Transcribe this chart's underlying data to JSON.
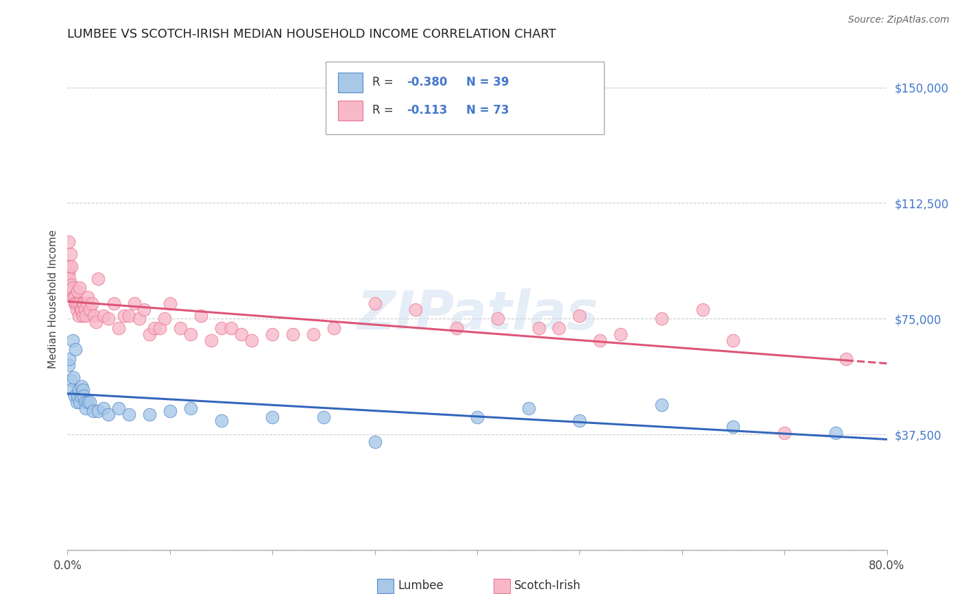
{
  "title": "LUMBEE VS SCOTCH-IRISH MEDIAN HOUSEHOLD INCOME CORRELATION CHART",
  "source": "Source: ZipAtlas.com",
  "ylabel": "Median Household Income",
  "yticks": [
    0,
    37500,
    75000,
    112500,
    150000
  ],
  "xlim": [
    0.0,
    0.8
  ],
  "ylim": [
    0,
    162500
  ],
  "watermark": "ZIPatlas",
  "lumbee_R": "-0.380",
  "lumbee_N": "39",
  "scotch_R": "-0.113",
  "scotch_N": "73",
  "lumbee_color": "#a8c8e8",
  "lumbee_edge_color": "#5588cc",
  "lumbee_line_color": "#3366bb",
  "scotch_color": "#f8b8c8",
  "scotch_edge_color": "#e87090",
  "scotch_line_color": "#dd5577",
  "lumbee_x": [
    0.001,
    0.002,
    0.003,
    0.004,
    0.005,
    0.006,
    0.007,
    0.008,
    0.009,
    0.01,
    0.011,
    0.012,
    0.013,
    0.014,
    0.015,
    0.016,
    0.017,
    0.018,
    0.02,
    0.022,
    0.025,
    0.03,
    0.035,
    0.04,
    0.05,
    0.06,
    0.08,
    0.1,
    0.12,
    0.15,
    0.2,
    0.25,
    0.3,
    0.4,
    0.45,
    0.5,
    0.58,
    0.65,
    0.75
  ],
  "lumbee_y": [
    60000,
    62000,
    55000,
    52000,
    68000,
    56000,
    50000,
    65000,
    48000,
    50000,
    52000,
    48000,
    50000,
    53000,
    52000,
    50000,
    48000,
    46000,
    48000,
    48000,
    45000,
    45000,
    46000,
    44000,
    46000,
    44000,
    44000,
    45000,
    46000,
    42000,
    43000,
    43000,
    35000,
    43000,
    46000,
    42000,
    47000,
    40000,
    38000
  ],
  "scotch_x": [
    0.001,
    0.001,
    0.002,
    0.002,
    0.003,
    0.004,
    0.004,
    0.005,
    0.005,
    0.006,
    0.007,
    0.007,
    0.008,
    0.009,
    0.01,
    0.01,
    0.011,
    0.012,
    0.012,
    0.013,
    0.014,
    0.015,
    0.015,
    0.016,
    0.017,
    0.018,
    0.019,
    0.02,
    0.022,
    0.024,
    0.026,
    0.028,
    0.03,
    0.035,
    0.04,
    0.045,
    0.05,
    0.055,
    0.06,
    0.065,
    0.07,
    0.075,
    0.08,
    0.085,
    0.09,
    0.095,
    0.1,
    0.11,
    0.12,
    0.13,
    0.14,
    0.15,
    0.16,
    0.17,
    0.18,
    0.2,
    0.22,
    0.24,
    0.26,
    0.3,
    0.34,
    0.38,
    0.42,
    0.46,
    0.48,
    0.5,
    0.52,
    0.54,
    0.58,
    0.62,
    0.65,
    0.7,
    0.76
  ],
  "scotch_y": [
    90000,
    100000,
    92000,
    88000,
    96000,
    86000,
    92000,
    84000,
    85000,
    82000,
    82000,
    80000,
    80000,
    78000,
    80000,
    84000,
    76000,
    80000,
    85000,
    78000,
    78000,
    76000,
    80000,
    80000,
    78000,
    76000,
    80000,
    82000,
    78000,
    80000,
    76000,
    74000,
    88000,
    76000,
    75000,
    80000,
    72000,
    76000,
    76000,
    80000,
    75000,
    78000,
    70000,
    72000,
    72000,
    75000,
    80000,
    72000,
    70000,
    76000,
    68000,
    72000,
    72000,
    70000,
    68000,
    70000,
    70000,
    70000,
    72000,
    80000,
    78000,
    72000,
    75000,
    72000,
    72000,
    76000,
    68000,
    70000,
    75000,
    78000,
    68000,
    38000,
    62000
  ]
}
